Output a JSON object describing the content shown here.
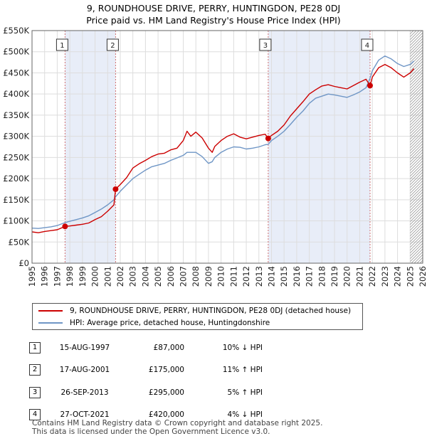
{
  "header": {
    "title_line1": "9, ROUNDHOUSE DRIVE, PERRY, HUNTINGDON, PE28 0DJ",
    "title_line2": "Price paid vs. HM Land Registry's House Price Index (HPI)"
  },
  "legend": {
    "property_label": "9, ROUNDHOUSE DRIVE, PERRY, HUNTINGDON, PE28 0DJ (detached house)",
    "hpi_label": "HPI: Average price, detached house, Huntingdonshire"
  },
  "colors": {
    "property": "#cc0000",
    "hpi": "#6f96c6",
    "shade": "#e8edf8",
    "marker_line": "#d07070"
  },
  "sales": [
    {
      "num": "1",
      "date": "15-AUG-1997",
      "price": "£87,000",
      "hpi": "10% ↓ HPI"
    },
    {
      "num": "2",
      "date": "17-AUG-2001",
      "price": "£175,000",
      "hpi": "11% ↑ HPI"
    },
    {
      "num": "3",
      "date": "26-SEP-2013",
      "price": "£295,000",
      "hpi": "5% ↑ HPI"
    },
    {
      "num": "4",
      "date": "27-OCT-2021",
      "price": "£420,000",
      "hpi": "4% ↓ HPI"
    }
  ],
  "footer": {
    "line1": "Contains HM Land Registry data © Crown copyright and database right 2025.",
    "line2": "This data is licensed under the Open Government Licence v3.0."
  },
  "chart_data": {
    "type": "line",
    "title": "9, ROUNDHOUSE DRIVE, PERRY, HUNTINGDON, PE28 0DJ",
    "subtitle": "Price paid vs. HM Land Registry's House Price Index (HPI)",
    "xlabel": "",
    "ylabel": "",
    "xlim": [
      1995,
      2026
    ],
    "ylim": [
      0,
      550000
    ],
    "x_ticks": [
      1995,
      1996,
      1997,
      1998,
      1999,
      2000,
      2001,
      2002,
      2003,
      2004,
      2005,
      2006,
      2007,
      2008,
      2009,
      2010,
      2011,
      2012,
      2013,
      2014,
      2015,
      2016,
      2017,
      2018,
      2019,
      2020,
      2021,
      2022,
      2023,
      2024,
      2025,
      2026
    ],
    "y_ticks": [
      0,
      50000,
      100000,
      150000,
      200000,
      250000,
      300000,
      350000,
      400000,
      450000,
      500000,
      550000
    ],
    "y_tick_labels": [
      "£0",
      "£50K",
      "£100K",
      "£150K",
      "£200K",
      "£250K",
      "£300K",
      "£350K",
      "£400K",
      "£450K",
      "£500K",
      "£550K"
    ],
    "grid": true,
    "legend_position": "below",
    "sale_dates": [
      1997.62,
      2001.63,
      2013.74,
      2021.82
    ],
    "sale_prices": [
      87000,
      175000,
      295000,
      420000
    ],
    "sale_labels": [
      "1",
      "2",
      "3",
      "4"
    ],
    "shaded_ranges": [
      [
        1997.62,
        2001.63
      ],
      [
        2013.74,
        2021.82
      ]
    ],
    "hatched_from": 2025.0,
    "series": [
      {
        "name": "9, ROUNDHOUSE DRIVE, PERRY, HUNTINGDON, PE28 0DJ (detached house)",
        "x": [
          1995,
          1995.5,
          1996,
          1996.5,
          1997,
          1997.62,
          1998,
          1998.5,
          1999,
          1999.5,
          2000,
          2000.5,
          2001,
          2001.5,
          2001.63,
          2002,
          2002.5,
          2003,
          2003.5,
          2004,
          2004.5,
          2005,
          2005.5,
          2006,
          2006.5,
          2007,
          2007.3,
          2007.6,
          2008,
          2008.5,
          2009,
          2009.3,
          2009.5,
          2010,
          2010.5,
          2011,
          2011.5,
          2012,
          2012.5,
          2013,
          2013.5,
          2013.74,
          2014,
          2014.5,
          2015,
          2015.5,
          2016,
          2016.5,
          2017,
          2017.5,
          2018,
          2018.5,
          2019,
          2019.5,
          2020,
          2020.5,
          2021,
          2021.5,
          2021.82,
          2022,
          2022.5,
          2023,
          2023.5,
          2024,
          2024.5,
          2025,
          2025.3
        ],
        "y": [
          74000,
          72000,
          75000,
          77000,
          79000,
          87000,
          88000,
          90000,
          92000,
          95000,
          103000,
          110000,
          123000,
          138000,
          175000,
          186000,
          202000,
          225000,
          235000,
          243000,
          252000,
          258000,
          260000,
          268000,
          272000,
          290000,
          312000,
          300000,
          310000,
          296000,
          272000,
          262000,
          276000,
          290000,
          300000,
          306000,
          298000,
          294000,
          298000,
          302000,
          305000,
          295000,
          302000,
          312000,
          327000,
          348000,
          365000,
          382000,
          400000,
          410000,
          419000,
          422000,
          418000,
          415000,
          412000,
          420000,
          428000,
          435000,
          420000,
          440000,
          462000,
          470000,
          462000,
          450000,
          440000,
          450000,
          460000
        ]
      },
      {
        "name": "HPI: Average price, detached house, Huntingdonshire",
        "x": [
          1995,
          1995.5,
          1996,
          1996.5,
          1997,
          1997.62,
          1998,
          1998.5,
          1999,
          1999.5,
          2000,
          2000.5,
          2001,
          2001.5,
          2001.63,
          2002,
          2002.5,
          2003,
          2003.5,
          2004,
          2004.5,
          2005,
          2005.5,
          2006,
          2006.5,
          2007,
          2007.3,
          2007.6,
          2008,
          2008.5,
          2009,
          2009.3,
          2009.5,
          2010,
          2010.5,
          2011,
          2011.5,
          2012,
          2012.5,
          2013,
          2013.5,
          2013.74,
          2014,
          2014.5,
          2015,
          2015.5,
          2016,
          2016.5,
          2017,
          2017.5,
          2018,
          2018.5,
          2019,
          2019.5,
          2020,
          2020.5,
          2021,
          2021.5,
          2021.82,
          2022,
          2022.5,
          2023,
          2023.5,
          2024,
          2024.5,
          2025,
          2025.3
        ],
        "y": [
          83000,
          82000,
          84000,
          86000,
          89000,
          96000,
          99000,
          103000,
          107000,
          112000,
          120000,
          128000,
          138000,
          150000,
          157000,
          170000,
          185000,
          200000,
          210000,
          220000,
          228000,
          232000,
          236000,
          243000,
          249000,
          255000,
          262000,
          262000,
          262000,
          252000,
          236000,
          240000,
          250000,
          262000,
          270000,
          275000,
          274000,
          270000,
          272000,
          275000,
          280000,
          281000,
          290000,
          300000,
          312000,
          328000,
          345000,
          360000,
          378000,
          390000,
          395000,
          400000,
          398000,
          395000,
          392000,
          398000,
          405000,
          415000,
          437000,
          455000,
          480000,
          490000,
          483000,
          472000,
          465000,
          470000,
          478000
        ]
      }
    ]
  }
}
